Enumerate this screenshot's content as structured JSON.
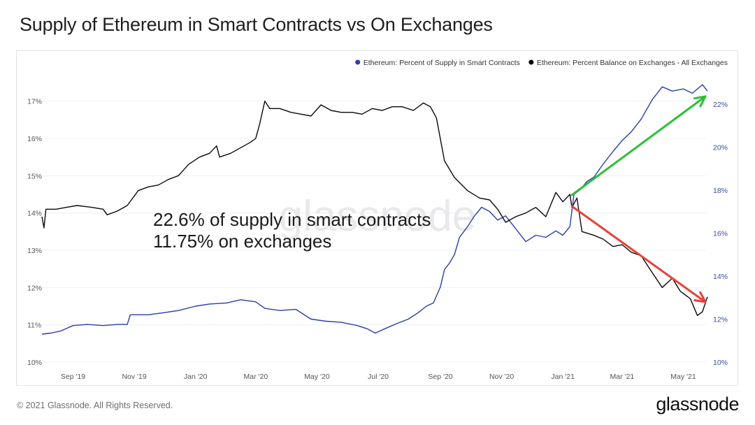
{
  "page": {
    "title": "Supply of Ethereum in Smart Contracts vs On Exchanges",
    "copyright": "© 2021 Glassnode. All Rights Reserved.",
    "logo_text": "glassnode",
    "watermark": "glassnode"
  },
  "annotation": {
    "line1": "22.6% of supply in smart contracts",
    "line2": "11.75% on exchanges"
  },
  "colors": {
    "smart_contracts": "#2b3ea8",
    "exchanges": "#0a0a0a",
    "arrow_up": "#2dbf3a",
    "arrow_down": "#e8413a",
    "grid": "#eef0f3",
    "axis_text": "#555555",
    "right_axis_text": "#3a4aa8"
  },
  "chart_data": {
    "type": "line",
    "x_type": "date",
    "x_range": [
      "2019-08-01",
      "2021-06-01"
    ],
    "x_ticks": [
      {
        "date": "2019-09-01",
        "label": "Sep '19"
      },
      {
        "date": "2019-11-01",
        "label": "Nov '19"
      },
      {
        "date": "2020-01-01",
        "label": "Jan '20"
      },
      {
        "date": "2020-03-01",
        "label": "Mar '20"
      },
      {
        "date": "2020-05-01",
        "label": "May '20"
      },
      {
        "date": "2020-07-01",
        "label": "Jul '20"
      },
      {
        "date": "2020-09-01",
        "label": "Sep '20"
      },
      {
        "date": "2020-11-01",
        "label": "Nov '20"
      },
      {
        "date": "2021-01-01",
        "label": "Jan '21"
      },
      {
        "date": "2021-03-01",
        "label": "Mar '21"
      },
      {
        "date": "2021-05-01",
        "label": "May '21"
      }
    ],
    "y_left": {
      "range": [
        10,
        17.5
      ],
      "ticks": [
        10,
        11,
        12,
        13,
        14,
        15,
        16,
        17
      ],
      "tick_labels": [
        "10%",
        "11%",
        "12%",
        "13%",
        "14%",
        "15%",
        "16%",
        "17%"
      ]
    },
    "y_right": {
      "range": [
        10,
        23
      ],
      "ticks": [
        10,
        12,
        14,
        16,
        18,
        20,
        22
      ],
      "tick_labels": [
        "10%",
        "12%",
        "14%",
        "16%",
        "18%",
        "20%",
        "22%"
      ]
    },
    "grid": "horizontal",
    "legend_position": "top-right",
    "series": [
      {
        "name": "Ethereum: Percent of Supply in Smart Contracts",
        "axis": "right",
        "color": "#2b3ea8",
        "points": [
          [
            "2019-08-01",
            11.3
          ],
          [
            "2019-08-10",
            11.35
          ],
          [
            "2019-08-20",
            11.45
          ],
          [
            "2019-09-01",
            11.7
          ],
          [
            "2019-09-15",
            11.75
          ],
          [
            "2019-10-01",
            11.7
          ],
          [
            "2019-10-15",
            11.75
          ],
          [
            "2019-10-25",
            11.75
          ],
          [
            "2019-10-28",
            12.2
          ],
          [
            "2019-11-15",
            12.2
          ],
          [
            "2019-12-01",
            12.3
          ],
          [
            "2019-12-15",
            12.4
          ],
          [
            "2020-01-01",
            12.6
          ],
          [
            "2020-01-15",
            12.7
          ],
          [
            "2020-02-01",
            12.75
          ],
          [
            "2020-02-15",
            12.9
          ],
          [
            "2020-03-01",
            12.8
          ],
          [
            "2020-03-10",
            12.5
          ],
          [
            "2020-03-25",
            12.4
          ],
          [
            "2020-04-10",
            12.45
          ],
          [
            "2020-04-25",
            12.0
          ],
          [
            "2020-05-10",
            11.9
          ],
          [
            "2020-05-25",
            11.85
          ],
          [
            "2020-06-10",
            11.7
          ],
          [
            "2020-06-20",
            11.55
          ],
          [
            "2020-06-28",
            11.35
          ],
          [
            "2020-07-10",
            11.6
          ],
          [
            "2020-07-20",
            11.8
          ],
          [
            "2020-07-31",
            12.0
          ],
          [
            "2020-08-10",
            12.3
          ],
          [
            "2020-08-18",
            12.6
          ],
          [
            "2020-08-25",
            12.75
          ],
          [
            "2020-09-01",
            13.5
          ],
          [
            "2020-09-05",
            14.3
          ],
          [
            "2020-09-10",
            14.6
          ],
          [
            "2020-09-15",
            15.0
          ],
          [
            "2020-09-20",
            15.8
          ],
          [
            "2020-09-28",
            16.3
          ],
          [
            "2020-10-05",
            16.8
          ],
          [
            "2020-10-12",
            17.2
          ],
          [
            "2020-10-20",
            17.0
          ],
          [
            "2020-10-28",
            16.6
          ],
          [
            "2020-11-05",
            16.8
          ],
          [
            "2020-11-15",
            16.2
          ],
          [
            "2020-11-25",
            15.6
          ],
          [
            "2020-12-05",
            15.9
          ],
          [
            "2020-12-15",
            15.8
          ],
          [
            "2020-12-25",
            16.1
          ],
          [
            "2021-01-01",
            15.9
          ],
          [
            "2021-01-08",
            16.3
          ],
          [
            "2021-01-12",
            17.8
          ],
          [
            "2021-01-18",
            18.0
          ],
          [
            "2021-01-25",
            18.4
          ],
          [
            "2021-02-01",
            18.6
          ],
          [
            "2021-02-10",
            19.2
          ],
          [
            "2021-02-20",
            19.8
          ],
          [
            "2021-03-01",
            20.3
          ],
          [
            "2021-03-10",
            20.7
          ],
          [
            "2021-03-20",
            21.3
          ],
          [
            "2021-03-31",
            22.2
          ],
          [
            "2021-04-10",
            22.8
          ],
          [
            "2021-04-20",
            22.6
          ],
          [
            "2021-05-01",
            22.7
          ],
          [
            "2021-05-10",
            22.5
          ],
          [
            "2021-05-20",
            22.9
          ],
          [
            "2021-05-25",
            22.6
          ]
        ]
      },
      {
        "name": "Ethereum: Percent Balance on Exchanges - All Exchanges",
        "axis": "left",
        "color": "#0a0a0a",
        "points": [
          [
            "2019-08-01",
            13.9
          ],
          [
            "2019-08-03",
            13.6
          ],
          [
            "2019-08-05",
            14.1
          ],
          [
            "2019-08-15",
            14.1
          ],
          [
            "2019-08-25",
            14.15
          ],
          [
            "2019-09-05",
            14.2
          ],
          [
            "2019-09-20",
            14.15
          ],
          [
            "2019-10-01",
            14.1
          ],
          [
            "2019-10-05",
            13.95
          ],
          [
            "2019-10-15",
            14.05
          ],
          [
            "2019-10-25",
            14.2
          ],
          [
            "2019-11-05",
            14.6
          ],
          [
            "2019-11-15",
            14.7
          ],
          [
            "2019-11-25",
            14.75
          ],
          [
            "2019-12-05",
            14.9
          ],
          [
            "2019-12-15",
            15.0
          ],
          [
            "2019-12-25",
            15.3
          ],
          [
            "2020-01-05",
            15.5
          ],
          [
            "2020-01-15",
            15.6
          ],
          [
            "2020-01-22",
            15.8
          ],
          [
            "2020-01-25",
            15.5
          ],
          [
            "2020-02-05",
            15.6
          ],
          [
            "2020-02-15",
            15.75
          ],
          [
            "2020-02-25",
            15.9
          ],
          [
            "2020-03-01",
            16.0
          ],
          [
            "2020-03-05",
            16.4
          ],
          [
            "2020-03-10",
            17.0
          ],
          [
            "2020-03-15",
            16.8
          ],
          [
            "2020-03-25",
            16.8
          ],
          [
            "2020-04-05",
            16.7
          ],
          [
            "2020-04-15",
            16.65
          ],
          [
            "2020-04-25",
            16.6
          ],
          [
            "2020-05-05",
            16.9
          ],
          [
            "2020-05-15",
            16.75
          ],
          [
            "2020-05-25",
            16.7
          ],
          [
            "2020-06-05",
            16.7
          ],
          [
            "2020-06-15",
            16.65
          ],
          [
            "2020-06-25",
            16.8
          ],
          [
            "2020-07-05",
            16.75
          ],
          [
            "2020-07-15",
            16.85
          ],
          [
            "2020-07-25",
            16.85
          ],
          [
            "2020-08-05",
            16.75
          ],
          [
            "2020-08-15",
            16.95
          ],
          [
            "2020-08-22",
            16.85
          ],
          [
            "2020-08-28",
            16.55
          ],
          [
            "2020-09-05",
            15.4
          ],
          [
            "2020-09-15",
            14.95
          ],
          [
            "2020-09-28",
            14.6
          ],
          [
            "2020-10-10",
            14.4
          ],
          [
            "2020-10-20",
            14.35
          ],
          [
            "2020-10-28",
            14.1
          ],
          [
            "2020-11-05",
            13.75
          ],
          [
            "2020-11-15",
            13.9
          ],
          [
            "2020-11-25",
            14.0
          ],
          [
            "2020-12-05",
            14.15
          ],
          [
            "2020-12-15",
            13.9
          ],
          [
            "2020-12-25",
            14.55
          ],
          [
            "2021-01-01",
            14.3
          ],
          [
            "2021-01-08",
            14.5
          ],
          [
            "2021-01-10",
            14.15
          ],
          [
            "2021-01-15",
            14.4
          ],
          [
            "2021-01-20",
            13.5
          ],
          [
            "2021-02-01",
            13.4
          ],
          [
            "2021-02-10",
            13.3
          ],
          [
            "2021-02-20",
            13.1
          ],
          [
            "2021-03-01",
            13.15
          ],
          [
            "2021-03-10",
            12.95
          ],
          [
            "2021-03-20",
            12.85
          ],
          [
            "2021-03-31",
            12.4
          ],
          [
            "2021-04-10",
            12.0
          ],
          [
            "2021-04-20",
            12.25
          ],
          [
            "2021-04-28",
            11.9
          ],
          [
            "2021-05-08",
            11.7
          ],
          [
            "2021-05-15",
            11.25
          ],
          [
            "2021-05-20",
            11.35
          ],
          [
            "2021-05-25",
            11.75
          ]
        ]
      }
    ]
  }
}
